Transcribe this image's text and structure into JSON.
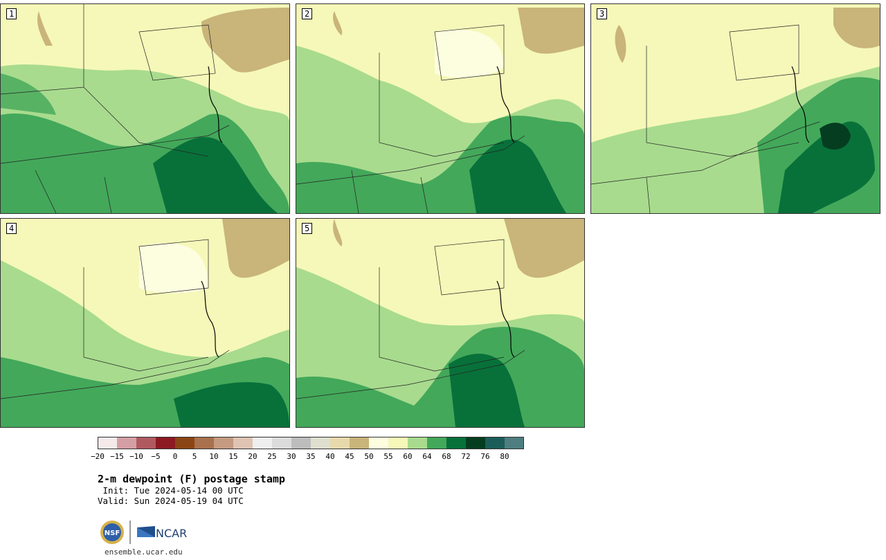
{
  "panels": [
    {
      "label": "1"
    },
    {
      "label": "2"
    },
    {
      "label": "3"
    },
    {
      "label": "4"
    },
    {
      "label": "5"
    }
  ],
  "colorbar": {
    "colors": [
      "#f5e9ea",
      "#d49fa4",
      "#b05a60",
      "#8c1a22",
      "#8b4515",
      "#a9714d",
      "#c49a80",
      "#dfc3b3",
      "#efefef",
      "#dcdcdc",
      "#bdbdbd",
      "#dfdfcf",
      "#e8d9ad",
      "#c9b47a",
      "#fdfde0",
      "#f5f8b8",
      "#a8db8e",
      "#43a85a",
      "#08713a",
      "#053d20",
      "#1b5e59",
      "#4e7e80"
    ],
    "ticks": [
      "−20",
      "−15",
      "−10",
      "−5",
      "0",
      "5",
      "10",
      "15",
      "20",
      "25",
      "30",
      "35",
      "40",
      "45",
      "50",
      "55",
      "60",
      "64",
      "68",
      "72",
      "76",
      "80"
    ]
  },
  "title": "2-m dewpoint (F) postage stamp",
  "init": " Init: Tue 2024-05-14 00 UTC",
  "valid": "Valid: Sun 2024-05-19 04 UTC",
  "logo": {
    "nsf": "NSF",
    "ncar": "NCAR"
  },
  "site": "ensemble.ucar.edu"
}
